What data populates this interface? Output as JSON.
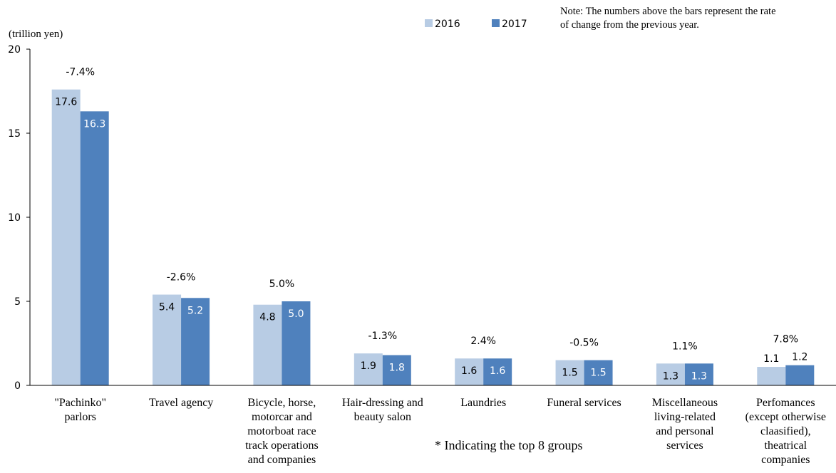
{
  "chart_data": {
    "type": "bar",
    "unit_label": "(trillion yen)",
    "note": "Note: The numbers above the bars represent the rate of change from the previous year.",
    "note_lines": [
      "Note: The numbers above the bars represent the rate",
      "of change from the previous year."
    ],
    "footnote": "* Indicating the top 8 groups",
    "ylim": [
      0,
      20
    ],
    "yticks": [
      "0",
      "5",
      "10",
      "15",
      "20"
    ],
    "grid": false,
    "legend_position": "top-center",
    "categories": [
      "\"Pachinko\" parlors",
      "Travel agency",
      "Bicycle, horse, motorcar and motorboat race track operations and companies",
      "Hair-dressing and beauty salon",
      "Laundries",
      "Funeral services",
      "Miscellaneous living-related and personal services",
      "Perfomances (except otherwise claasified), theatrical companies"
    ],
    "category_lines": [
      [
        "\"Pachinko\"",
        "parlors"
      ],
      [
        "Travel agency"
      ],
      [
        "Bicycle, horse,",
        "motorcar and",
        "motorboat race",
        "track operations",
        "and companies"
      ],
      [
        "Hair-dressing and",
        "beauty salon"
      ],
      [
        "Laundries"
      ],
      [
        "Funeral services"
      ],
      [
        "Miscellaneous",
        "living-related",
        "and personal",
        "services"
      ],
      [
        "Perfomances",
        "(except otherwise",
        "claasified),",
        "theatrical",
        "companies"
      ]
    ],
    "series": [
      {
        "name": "2016",
        "color": "#b8cce4",
        "values": [
          17.6,
          5.4,
          4.8,
          1.9,
          1.6,
          1.5,
          1.3,
          1.1
        ],
        "labels": [
          "17.6",
          "5.4",
          "4.8",
          "1.9",
          "1.6",
          "1.5",
          "1.3",
          "1.1"
        ]
      },
      {
        "name": "2017",
        "color": "#4f81bd",
        "values": [
          16.3,
          5.2,
          5.0,
          1.8,
          1.6,
          1.5,
          1.3,
          1.2
        ],
        "labels": [
          "16.3",
          "5.2",
          "5.0",
          "1.8",
          "1.6",
          "1.5",
          "1.3",
          "1.2"
        ]
      }
    ],
    "rate_of_change": [
      "-7.4%",
      "-2.6%",
      "5.0%",
      "-1.3%",
      "2.4%",
      "-0.5%",
      "1.1%",
      "7.8%"
    ]
  }
}
